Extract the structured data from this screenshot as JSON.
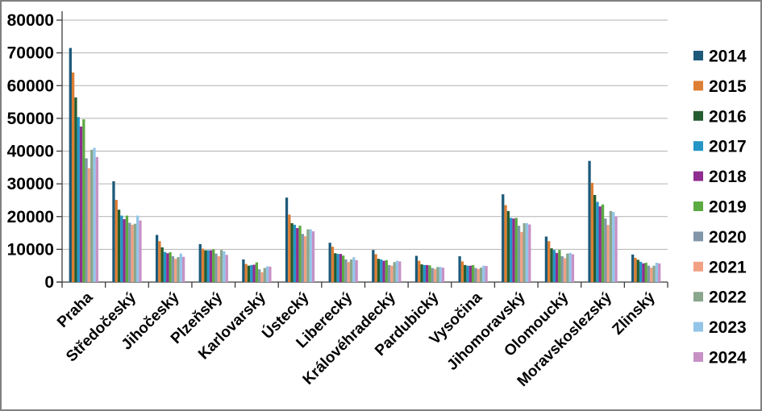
{
  "chart_data": {
    "type": "bar",
    "title": "",
    "xlabel": "",
    "ylabel": "",
    "categories": [
      "Praha",
      "Středočeský",
      "Jihočeský",
      "Plzeňský",
      "Karlovarský",
      "Ústecký",
      "Liberecký",
      "Královéhradecký",
      "Pardubický",
      "Vysočina",
      "Jihomoravský",
      "Olomoucký",
      "Moravskoslezský",
      "Zlinský"
    ],
    "series": [
      {
        "name": "2014",
        "color": "#1d5a7a",
        "values": [
          71500,
          30800,
          14400,
          11600,
          6900,
          25800,
          12000,
          9800,
          8000,
          7900,
          26800,
          13900,
          37000,
          8400
        ]
      },
      {
        "name": "2015",
        "color": "#dd7e32",
        "values": [
          64000,
          25100,
          12500,
          10200,
          5500,
          20600,
          10800,
          8500,
          6500,
          6300,
          23500,
          12500,
          30300,
          7400
        ]
      },
      {
        "name": "2016",
        "color": "#245c30",
        "values": [
          56400,
          22100,
          10600,
          9700,
          5000,
          18000,
          8800,
          7100,
          5400,
          5200,
          21700,
          10300,
          26600,
          6800
        ]
      },
      {
        "name": "2017",
        "color": "#2595c6",
        "values": [
          50400,
          20300,
          9200,
          9700,
          5200,
          17500,
          8600,
          6900,
          5200,
          5000,
          19600,
          9800,
          24500,
          6200
        ]
      },
      {
        "name": "2018",
        "color": "#8f2d90",
        "values": [
          47500,
          19200,
          8800,
          9700,
          5300,
          16500,
          8600,
          6500,
          5200,
          5000,
          19400,
          8900,
          23100,
          5700
        ]
      },
      {
        "name": "2019",
        "color": "#5caa42",
        "values": [
          49700,
          20300,
          9100,
          10000,
          6000,
          17200,
          8100,
          6700,
          5100,
          5200,
          19600,
          9800,
          23700,
          5900
        ]
      },
      {
        "name": "2020",
        "color": "#8296a8",
        "values": [
          37800,
          18100,
          7900,
          8700,
          3900,
          14700,
          6900,
          5200,
          4300,
          4300,
          17200,
          7900,
          19400,
          5000
        ]
      },
      {
        "name": "2021",
        "color": "#f2a083",
        "values": [
          34800,
          17500,
          7100,
          7900,
          3000,
          14000,
          6100,
          5000,
          4000,
          4000,
          15300,
          7300,
          17400,
          4400
        ]
      },
      {
        "name": "2022",
        "color": "#8aa68c",
        "values": [
          40400,
          17800,
          7600,
          9800,
          4300,
          16100,
          6900,
          6100,
          4600,
          4400,
          18000,
          8700,
          21700,
          5000
        ]
      },
      {
        "name": "2023",
        "color": "#93c5e8",
        "values": [
          41000,
          20300,
          8700,
          9400,
          4800,
          16100,
          7600,
          6500,
          4600,
          5000,
          18000,
          8900,
          21400,
          5900
        ]
      },
      {
        "name": "2024",
        "color": "#c791c6",
        "values": [
          38200,
          18800,
          7700,
          8300,
          4700,
          15500,
          6700,
          6300,
          4400,
          4900,
          17600,
          8500,
          20000,
          5700
        ]
      }
    ],
    "y_axis": {
      "min": 0,
      "max": 80000,
      "step": 10000,
      "tick_labels": [
        "0",
        "10000",
        "20000",
        "30000",
        "40000",
        "50000",
        "60000",
        "70000",
        "80000"
      ]
    },
    "grid": true,
    "legend_position": "right",
    "axis_color": "#3c3c3c",
    "grid_color": "#b2b2b2",
    "background_color": "#ffffff",
    "border_color": "#7f7f7f"
  }
}
